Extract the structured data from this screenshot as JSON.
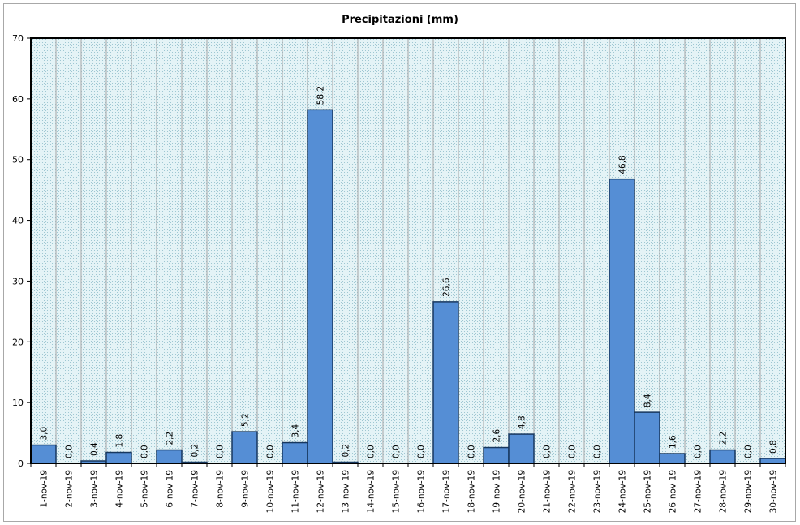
{
  "chart_data": {
    "type": "bar",
    "title": "Precipitazioni (mm)",
    "xlabel": "",
    "ylabel": "",
    "ylim": [
      0,
      70
    ],
    "yticks": [
      0,
      10,
      20,
      30,
      40,
      50,
      60,
      70
    ],
    "grid": true,
    "legend": "none",
    "categories": [
      "1-nov-19",
      "2-nov-19",
      "3-nov-19",
      "4-nov-19",
      "5-nov-19",
      "6-nov-19",
      "7-nov-19",
      "8-nov-19",
      "9-nov-19",
      "10-nov-19",
      "11-nov-19",
      "12-nov-19",
      "13-nov-19",
      "14-nov-19",
      "15-nov-19",
      "16-nov-19",
      "17-nov-19",
      "18-nov-19",
      "19-nov-19",
      "20-nov-19",
      "21-nov-19",
      "22-nov-19",
      "23-nov-19",
      "24-nov-19",
      "25-nov-19",
      "26-nov-19",
      "27-nov-19",
      "28-nov-19",
      "29-nov-19",
      "30-nov-19"
    ],
    "values": [
      3.0,
      0.0,
      0.4,
      1.8,
      0.0,
      2.2,
      0.2,
      0.0,
      5.2,
      0.0,
      3.4,
      58.2,
      0.2,
      0.0,
      0.0,
      0.0,
      26.6,
      0.0,
      2.6,
      4.8,
      0.0,
      0.0,
      0.0,
      46.8,
      8.4,
      1.6,
      0.0,
      2.2,
      0.0,
      0.8
    ],
    "data_labels": [
      "3,0",
      "0,0",
      "0,4",
      "1,8",
      "0,0",
      "2,2",
      "0,2",
      "0,0",
      "5,2",
      "0,0",
      "3,4",
      "58,2",
      "0,2",
      "0,0",
      "0,0",
      "0,0",
      "26,6",
      "0,0",
      "2,6",
      "4,8",
      "0,0",
      "0,0",
      "0,0",
      "46,8",
      "8,4",
      "1,6",
      "0,0",
      "2,2",
      "0,0",
      "0,8"
    ],
    "colors": {
      "bar_fill": "#558ed5",
      "bar_stroke": "#17375e",
      "plot_background": "#dbeef3",
      "gridline": "#a6a6a6"
    }
  }
}
